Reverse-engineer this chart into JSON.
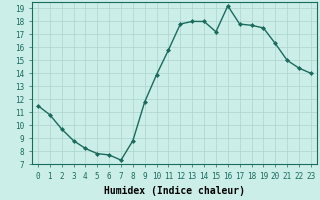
{
  "x": [
    0,
    1,
    2,
    3,
    4,
    5,
    6,
    7,
    8,
    9,
    10,
    11,
    12,
    13,
    14,
    15,
    16,
    17,
    18,
    19,
    20,
    21,
    22,
    23
  ],
  "y": [
    11.5,
    10.8,
    9.7,
    8.8,
    8.2,
    7.8,
    7.7,
    7.3,
    8.8,
    11.8,
    13.9,
    15.8,
    17.8,
    18.0,
    18.0,
    17.2,
    19.2,
    17.8,
    17.7,
    17.5,
    16.3,
    15.0,
    14.4,
    14.0
  ],
  "line_color": "#1a6b5e",
  "marker": "D",
  "marker_size": 2.0,
  "linewidth": 1.0,
  "xlabel": "Humidex (Indice chaleur)",
  "xlim": [
    -0.5,
    23.5
  ],
  "ylim": [
    7,
    19.5
  ],
  "yticks": [
    7,
    8,
    9,
    10,
    11,
    12,
    13,
    14,
    15,
    16,
    17,
    18,
    19
  ],
  "xticks": [
    0,
    1,
    2,
    3,
    4,
    5,
    6,
    7,
    8,
    9,
    10,
    11,
    12,
    13,
    14,
    15,
    16,
    17,
    18,
    19,
    20,
    21,
    22,
    23
  ],
  "xtick_labels": [
    "0",
    "1",
    "2",
    "3",
    "4",
    "5",
    "6",
    "7",
    "8",
    "9",
    "10",
    "11",
    "12",
    "13",
    "14",
    "15",
    "16",
    "17",
    "18",
    "19",
    "20",
    "21",
    "22",
    "23"
  ],
  "bg_color": "#cceee8",
  "grid_color": "#aad4cc",
  "tick_fontsize": 5.5,
  "xlabel_fontsize": 7.0
}
